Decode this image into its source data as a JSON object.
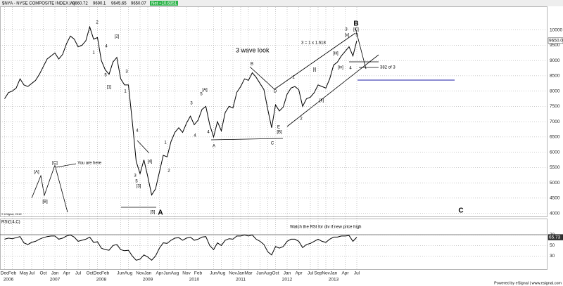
{
  "chart_data": {
    "type": "line",
    "title": "$NYA - NYSE COMPOSITE INDEX,W)",
    "header_values": [
      "9660.72",
      "9690.1",
      "9645.65",
      "9650.07"
    ],
    "net": "Net +10.6851",
    "footer": "Powered by eSignal | www.esignal.com",
    "copyright": "© eSignal, 2013",
    "x": [
      "2005-12",
      "2006-01",
      "2006-02",
      "2006-03",
      "2006-04",
      "2006-05",
      "2006-06",
      "2006-07",
      "2006-08",
      "2006-09",
      "2006-10",
      "2006-11",
      "2006-12",
      "2007-01",
      "2007-02",
      "2007-03",
      "2007-04",
      "2007-05",
      "2007-06",
      "2007-07",
      "2007-08",
      "2007-09",
      "2007-10",
      "2007-11",
      "2007-12",
      "2008-01",
      "2008-02",
      "2008-03",
      "2008-04",
      "2008-05",
      "2008-06",
      "2008-07",
      "2008-08",
      "2008-09",
      "2008-10",
      "2008-11",
      "2008-12",
      "2009-01",
      "2009-02",
      "2009-03",
      "2009-04",
      "2009-05",
      "2009-06",
      "2009-07",
      "2009-08",
      "2009-09",
      "2009-10",
      "2009-11",
      "2009-12",
      "2010-01",
      "2010-02",
      "2010-03",
      "2010-04",
      "2010-05",
      "2010-06",
      "2010-07",
      "2010-08",
      "2010-09",
      "2010-10",
      "2010-11",
      "2010-12",
      "2011-01",
      "2011-02",
      "2011-03",
      "2011-04",
      "2011-05",
      "2011-06",
      "2011-07",
      "2011-08",
      "2011-09",
      "2011-10",
      "2011-11",
      "2011-12",
      "2012-01",
      "2012-02",
      "2012-03",
      "2012-04",
      "2012-05",
      "2012-06",
      "2012-07",
      "2012-08",
      "2012-09",
      "2012-10",
      "2012-11",
      "2012-12",
      "2013-01",
      "2013-02",
      "2013-03",
      "2013-04",
      "2013-05",
      "2013-06",
      "2013-07"
    ],
    "series": [
      {
        "name": "$NYA",
        "color": "#000000",
        "values": [
          7750,
          7950,
          8000,
          8100,
          8400,
          8200,
          8150,
          8250,
          8350,
          8550,
          8800,
          9050,
          9150,
          9250,
          9050,
          9200,
          9550,
          9800,
          9700,
          9450,
          9500,
          9650,
          10100,
          9700,
          9750,
          9000,
          8700,
          8550,
          8950,
          9100,
          8400,
          8200,
          8200,
          7000,
          5700,
          5300,
          5750,
          5200,
          4600,
          4800,
          5350,
          5900,
          5850,
          6350,
          6650,
          6800,
          6650,
          6950,
          7180,
          6900,
          7050,
          7400,
          7500,
          6900,
          6500,
          7000,
          6700,
          7300,
          7500,
          7450,
          7960,
          8150,
          8400,
          8350,
          8600,
          8450,
          8250,
          8050,
          7400,
          6800,
          7550,
          7350,
          7480,
          7900,
          8100,
          8150,
          8050,
          7500,
          7750,
          7800,
          7950,
          8200,
          8150,
          8100,
          8400,
          8850,
          8950,
          9150,
          9300,
          9450,
          9150,
          9650.07
        ]
      },
      {
        "name": "RSI(14,C)",
        "color": "#000000",
        "axis": "y2",
        "values": [
          62,
          64,
          63,
          65,
          67,
          55,
          52,
          56,
          58,
          62,
          65,
          67,
          68,
          68,
          62,
          64,
          68,
          70,
          66,
          58,
          60,
          62,
          66,
          56,
          57,
          45,
          42,
          41,
          50,
          52,
          42,
          40,
          41,
          30,
          22,
          24,
          32,
          28,
          22,
          30,
          45,
          55,
          54,
          60,
          64,
          65,
          60,
          64,
          66,
          60,
          62,
          66,
          67,
          50,
          42,
          55,
          50,
          60,
          63,
          62,
          68,
          68,
          70,
          68,
          70,
          62,
          58,
          52,
          38,
          32,
          48,
          45,
          48,
          58,
          62,
          62,
          58,
          46,
          52,
          54,
          58,
          62,
          58,
          56,
          62,
          66,
          66,
          68,
          68,
          69,
          58,
          65.73
        ]
      }
    ],
    "ylim": [
      3900,
      10750
    ],
    "yticks": [
      4000,
      4500,
      5000,
      5500,
      6000,
      6500,
      7000,
      7500,
      8000,
      8500,
      9000,
      9500,
      10000
    ],
    "y2lim": [
      5,
      100
    ],
    "y2ticks": [
      30,
      50,
      70
    ],
    "xticks": [
      {
        "value": "2005-12",
        "label": "Dec"
      },
      {
        "value": "2006-02",
        "label": "Feb"
      },
      {
        "value": "2006-05",
        "label": "May"
      },
      {
        "value": "2006-07",
        "label": "Jul"
      },
      {
        "value": "2006-10",
        "label": "Oct"
      },
      {
        "value": "2007-01",
        "label": "Jan"
      },
      {
        "value": "2007-04",
        "label": "Apr"
      },
      {
        "value": "2007-07",
        "label": "Jul"
      },
      {
        "value": "2007-10",
        "label": "Oct"
      },
      {
        "value": "2007-12",
        "label": "Dec"
      },
      {
        "value": "2008-02",
        "label": "Feb"
      },
      {
        "value": "2008-06",
        "label": "Jun"
      },
      {
        "value": "2008-08",
        "label": "Aug"
      },
      {
        "value": "2008-11",
        "label": "Nov"
      },
      {
        "value": "2009-01",
        "label": "Jan"
      },
      {
        "value": "2009-04",
        "label": "Apr"
      },
      {
        "value": "2009-06",
        "label": "Jun"
      },
      {
        "value": "2009-08",
        "label": "Aug"
      },
      {
        "value": "2009-11",
        "label": "Nov"
      },
      {
        "value": "2010-02",
        "label": "Feb"
      },
      {
        "value": "2010-06",
        "label": "Jun"
      },
      {
        "value": "2010-08",
        "label": "Aug"
      },
      {
        "value": "2010-11",
        "label": "Nov"
      },
      {
        "value": "2011-01",
        "label": "Jan"
      },
      {
        "value": "2011-03",
        "label": "Mar"
      },
      {
        "value": "2011-06",
        "label": "Jun"
      },
      {
        "value": "2011-08",
        "label": "Aug"
      },
      {
        "value": "2011-10",
        "label": "Oct"
      },
      {
        "value": "2012-01",
        "label": "Jan"
      },
      {
        "value": "2012-04",
        "label": "Apr"
      },
      {
        "value": "2012-07",
        "label": "Jul"
      },
      {
        "value": "2012-09",
        "label": "Sep"
      },
      {
        "value": "2012-11",
        "label": "Nov"
      },
      {
        "value": "2013-01",
        "label": "Jan"
      },
      {
        "value": "2013-04",
        "label": "Apr"
      },
      {
        "value": "2013-07",
        "label": "Jul"
      }
    ],
    "year_ticks": [
      {
        "value": "2006-01",
        "label": "2006"
      },
      {
        "value": "2007-01",
        "label": "2007"
      },
      {
        "value": "2008-01",
        "label": "2008"
      },
      {
        "value": "2009-01",
        "label": "2009"
      },
      {
        "value": "2010-01",
        "label": "2010"
      },
      {
        "value": "2011-01",
        "label": "2011"
      },
      {
        "value": "2012-01",
        "label": "2012"
      },
      {
        "value": "2013-01",
        "label": "2013"
      }
    ],
    "grid": true,
    "annotations": [
      "3 wave look",
      "You are here",
      "3 = 1 x 1.618",
      "382 of 3",
      "Watch the RSI for div if new price high"
    ],
    "big_labels": [
      "B",
      "A",
      "C"
    ],
    "wave_labels": [
      "2",
      "[2]",
      "1",
      "4",
      "5",
      "[1]",
      "3",
      "1",
      "4",
      "3",
      "5",
      "[3]",
      "[4]",
      "[5]",
      "2",
      "1",
      "3",
      "4",
      "5",
      "[A]",
      "4",
      "A",
      "B",
      "D",
      "E",
      "[B]",
      "C",
      "1",
      "2",
      "[i]",
      "[ii]",
      "[iii]",
      "[iv]",
      "[v]",
      "3",
      "4",
      "5",
      "[C]",
      "[A]",
      "[B]",
      "[C]"
    ]
  }
}
